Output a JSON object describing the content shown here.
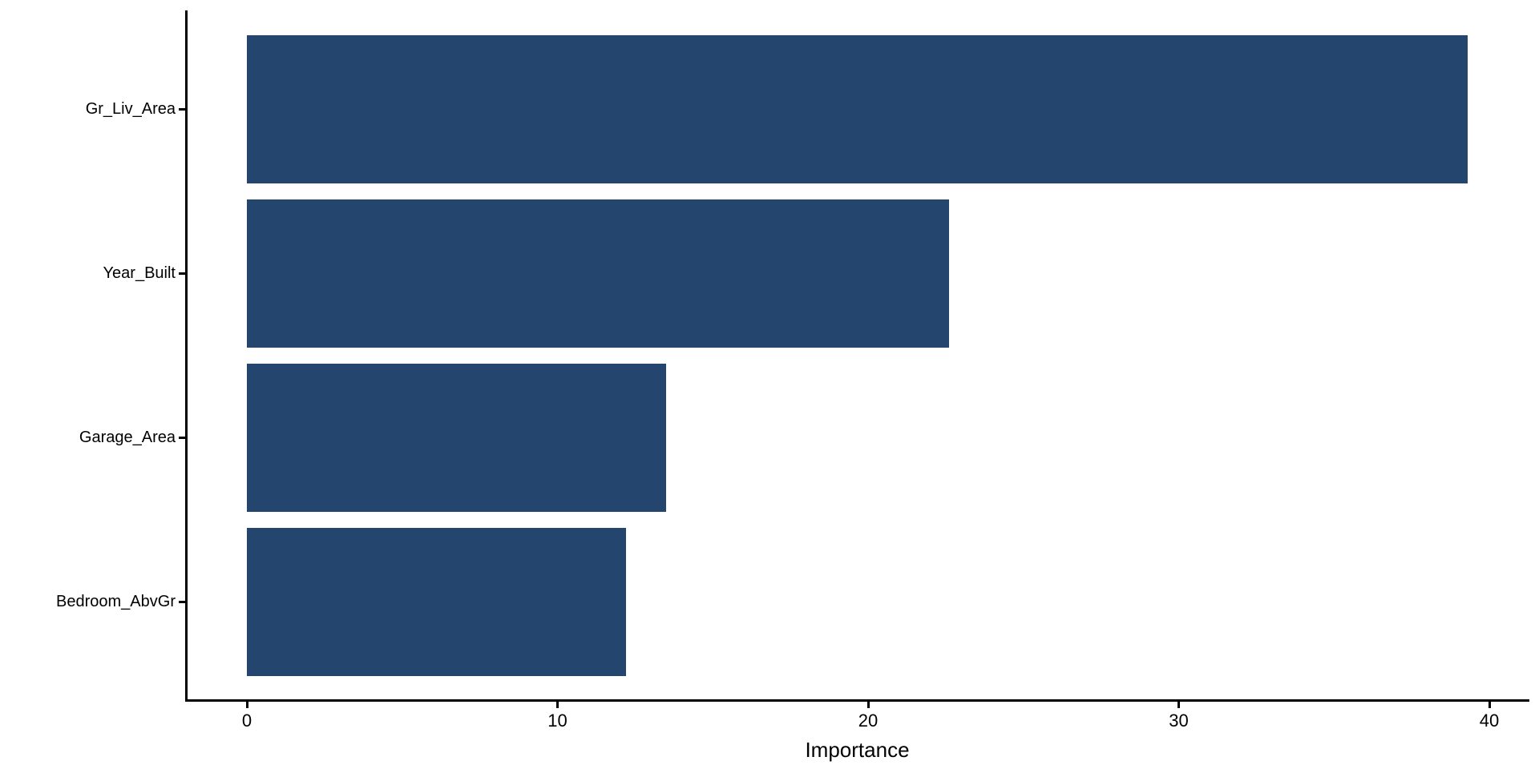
{
  "chart_data": {
    "type": "bar",
    "orientation": "horizontal",
    "title": "",
    "xlabel": "Importance",
    "ylabel": "",
    "categories": [
      "Gr_Liv_Area",
      "Year_Built",
      "Garage_Area",
      "Bedroom_AbvGr"
    ],
    "values": [
      39.3,
      22.6,
      13.5,
      12.2
    ],
    "x_ticks": [
      0,
      10,
      20,
      30,
      40
    ],
    "xlim": [
      0,
      41.3
    ],
    "grid": false,
    "legend": false,
    "colors": {
      "bar": "#24456E",
      "axis": "#000000",
      "text": "#000000",
      "background": "#FFFFFF"
    }
  }
}
